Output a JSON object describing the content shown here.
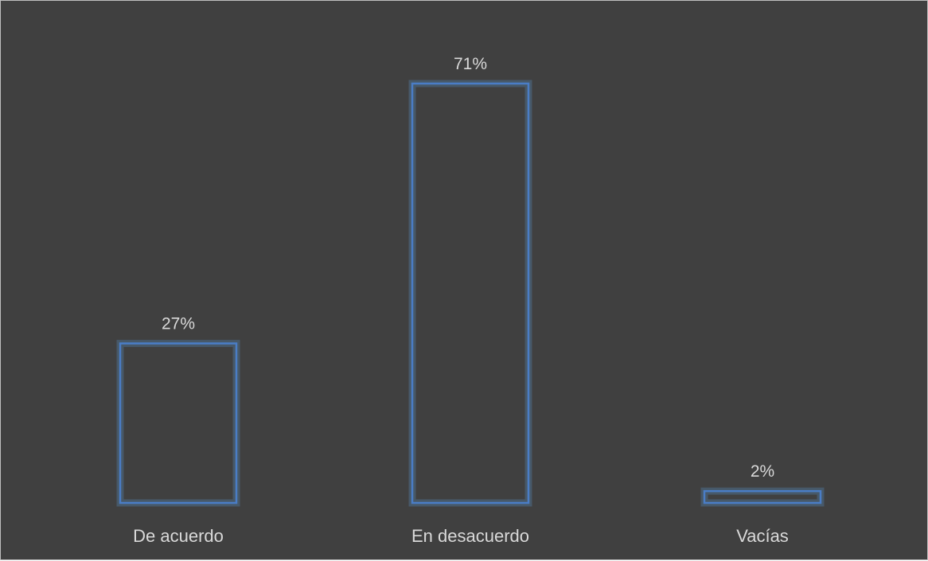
{
  "chart_data": {
    "type": "bar",
    "title": "",
    "xlabel": "",
    "ylabel": "",
    "categories": [
      "De acuerdo",
      "En desacuerdo",
      "Vacías"
    ],
    "values": [
      27,
      71,
      2
    ],
    "data_labels": [
      "27%",
      "71%",
      "2%"
    ],
    "ylim": [
      0,
      71
    ],
    "grid": false,
    "legend": "none",
    "colors": {
      "background": "#404040",
      "bar_stroke": "#4a7dc6",
      "bar_glow": "#5b9bd5",
      "text": "#d9d9d9",
      "frame_border": "#bfbfbf"
    }
  }
}
